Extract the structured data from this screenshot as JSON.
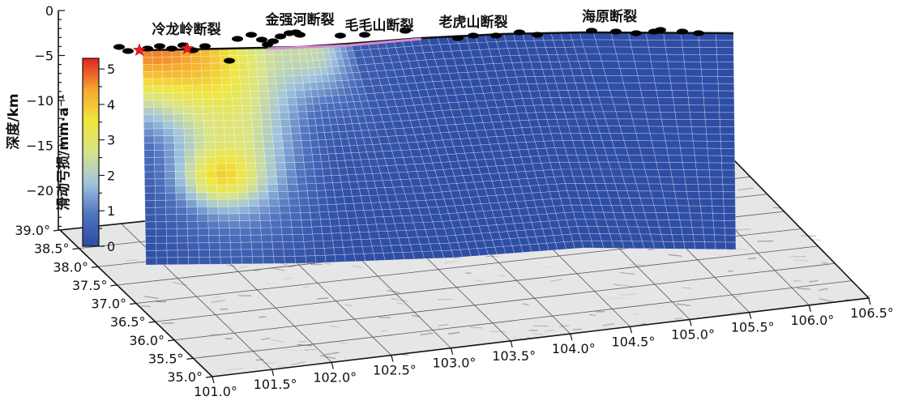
{
  "chart_data": {
    "type": "heatmap",
    "depth_axis": {
      "label": "深度/km",
      "ticks": [
        "0",
        "−5",
        "−10",
        "−15",
        "−20"
      ],
      "values": [
        0,
        -5,
        -10,
        -15,
        -20
      ]
    },
    "lat_axis": {
      "ticks": [
        "39.0°",
        "38.5°",
        "38.0°",
        "37.5°",
        "37.0°",
        "36.5°",
        "36.0°",
        "35.5°",
        "35.0°"
      ],
      "values": [
        39.0,
        38.5,
        38.0,
        37.5,
        37.0,
        36.5,
        36.0,
        35.5,
        35.0
      ]
    },
    "lon_axis": {
      "ticks": [
        "101.0°",
        "101.5°",
        "102.0°",
        "102.5°",
        "103.0°",
        "103.5°",
        "104.0°",
        "104.5°",
        "105.0°",
        "105.5°",
        "106.0°",
        "106.5°"
      ],
      "values": [
        101.0,
        101.5,
        102.0,
        102.5,
        103.0,
        103.5,
        104.0,
        104.5,
        105.0,
        105.5,
        106.0,
        106.5
      ]
    },
    "colorbar": {
      "label": "滑动亏损/mm·a⁻¹",
      "ticks": [
        "5",
        "4",
        "3",
        "2",
        "1",
        "0"
      ],
      "values": [
        5,
        4,
        3,
        2,
        1,
        0
      ],
      "range": [
        0,
        5.3
      ],
      "colors": [
        "#2c4ba3",
        "#4f73bf",
        "#9fc3dd",
        "#d8e48a",
        "#f0e63c",
        "#f6a830",
        "#e02020"
      ]
    },
    "fault_labels": [
      "冷龙岭断裂",
      "金强河断裂",
      "毛毛山断裂",
      "老虎山断裂",
      "海原断裂"
    ],
    "slip_deficit_peaks": [
      {
        "region": "冷龙岭断裂",
        "depth_km": -3,
        "value": 5.0
      },
      {
        "region": "deep patch",
        "depth_km": -21,
        "value": 3.3
      }
    ]
  }
}
